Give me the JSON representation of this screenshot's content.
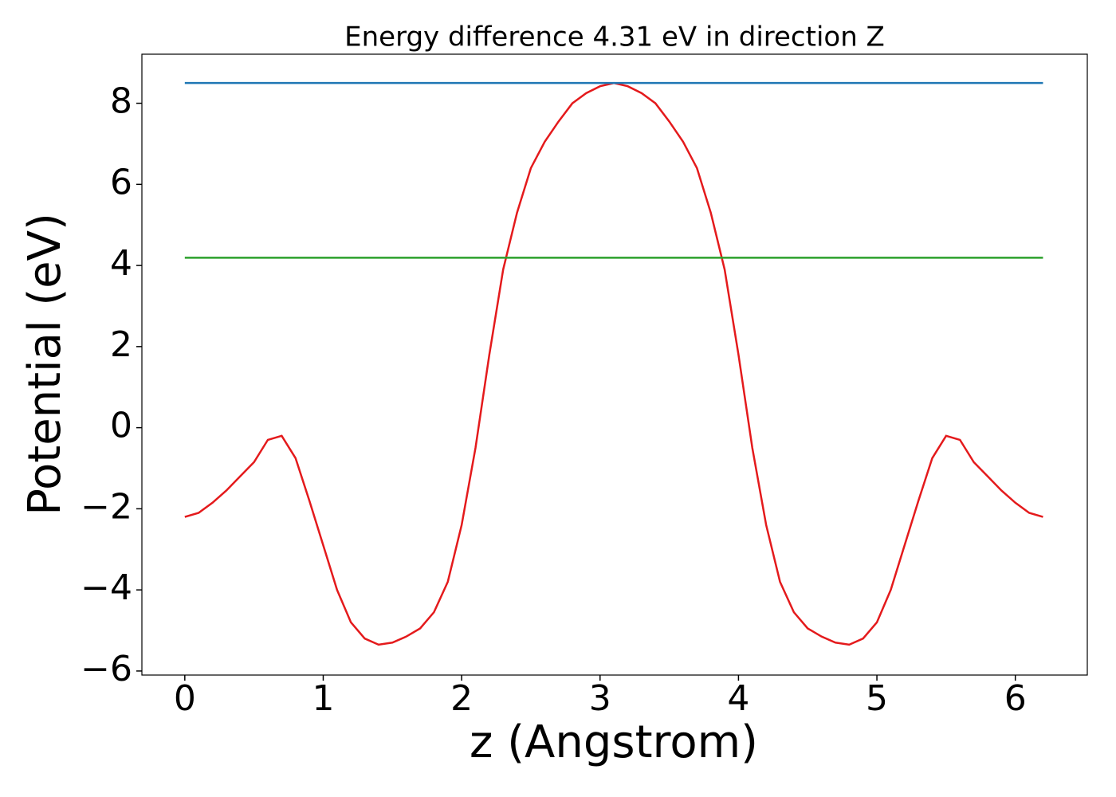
{
  "chart_data": {
    "type": "line",
    "title": "Energy difference 4.31 eV in direction Z",
    "xlabel": "z (Angstrom)",
    "ylabel": "Potential (eV)",
    "xlim": [
      -0.31,
      6.52
    ],
    "ylim": [
      -6.1,
      9.21
    ],
    "xticks": [
      0,
      1,
      2,
      3,
      4,
      5,
      6
    ],
    "yticks": [
      {
        "value": -6,
        "label": "−6"
      },
      {
        "value": -4,
        "label": "−4"
      },
      {
        "value": -2,
        "label": "−2"
      },
      0,
      2,
      4,
      6,
      8
    ],
    "series": [
      {
        "color": "#e41a1c",
        "x": [
          0,
          0.1,
          0.2,
          0.3,
          0.4,
          0.5,
          0.6,
          0.7,
          0.8,
          0.9,
          1.0,
          1.1,
          1.2,
          1.3,
          1.4,
          1.5,
          1.6,
          1.7,
          1.8,
          1.9,
          2.0,
          2.1,
          2.2,
          2.3,
          2.4,
          2.5,
          2.6,
          2.7,
          2.8,
          2.9,
          3.0,
          3.1,
          3.2,
          3.3,
          3.4,
          3.5,
          3.6,
          3.7,
          3.8,
          3.9,
          4.0,
          4.1,
          4.2,
          4.3,
          4.4,
          4.5,
          4.6,
          4.7,
          4.8,
          4.9,
          5.0,
          5.1,
          5.2,
          5.3,
          5.4,
          5.5,
          5.6,
          5.7,
          5.8,
          5.9,
          6.0,
          6.1,
          6.2
        ],
        "values": [
          -2.2,
          -2.1,
          -1.85,
          -1.55,
          -1.2,
          -0.85,
          -0.3,
          -0.2,
          -0.75,
          -1.8,
          -2.9,
          -4.0,
          -4.8,
          -5.2,
          -5.35,
          -5.3,
          -5.15,
          -4.95,
          -4.55,
          -3.8,
          -2.4,
          -0.5,
          1.8,
          3.9,
          5.3,
          6.4,
          7.05,
          7.55,
          8.0,
          8.25,
          8.42,
          8.5,
          8.42,
          8.25,
          8.0,
          7.55,
          7.05,
          6.4,
          5.3,
          3.9,
          1.8,
          -0.5,
          -2.4,
          -3.8,
          -4.55,
          -4.95,
          -5.15,
          -5.3,
          -5.35,
          -5.2,
          -4.8,
          -4.0,
          -2.9,
          -1.8,
          -0.75,
          -0.2,
          -0.3,
          -0.85,
          -1.2,
          -1.55,
          -1.85,
          -2.1,
          -2.2
        ]
      },
      {
        "color": "#1f77b4",
        "x": [
          0,
          6.2
        ],
        "values": [
          8.5,
          8.5
        ]
      },
      {
        "color": "#2ca02c",
        "x": [
          0,
          6.2
        ],
        "values": [
          4.19,
          4.19
        ]
      }
    ]
  }
}
